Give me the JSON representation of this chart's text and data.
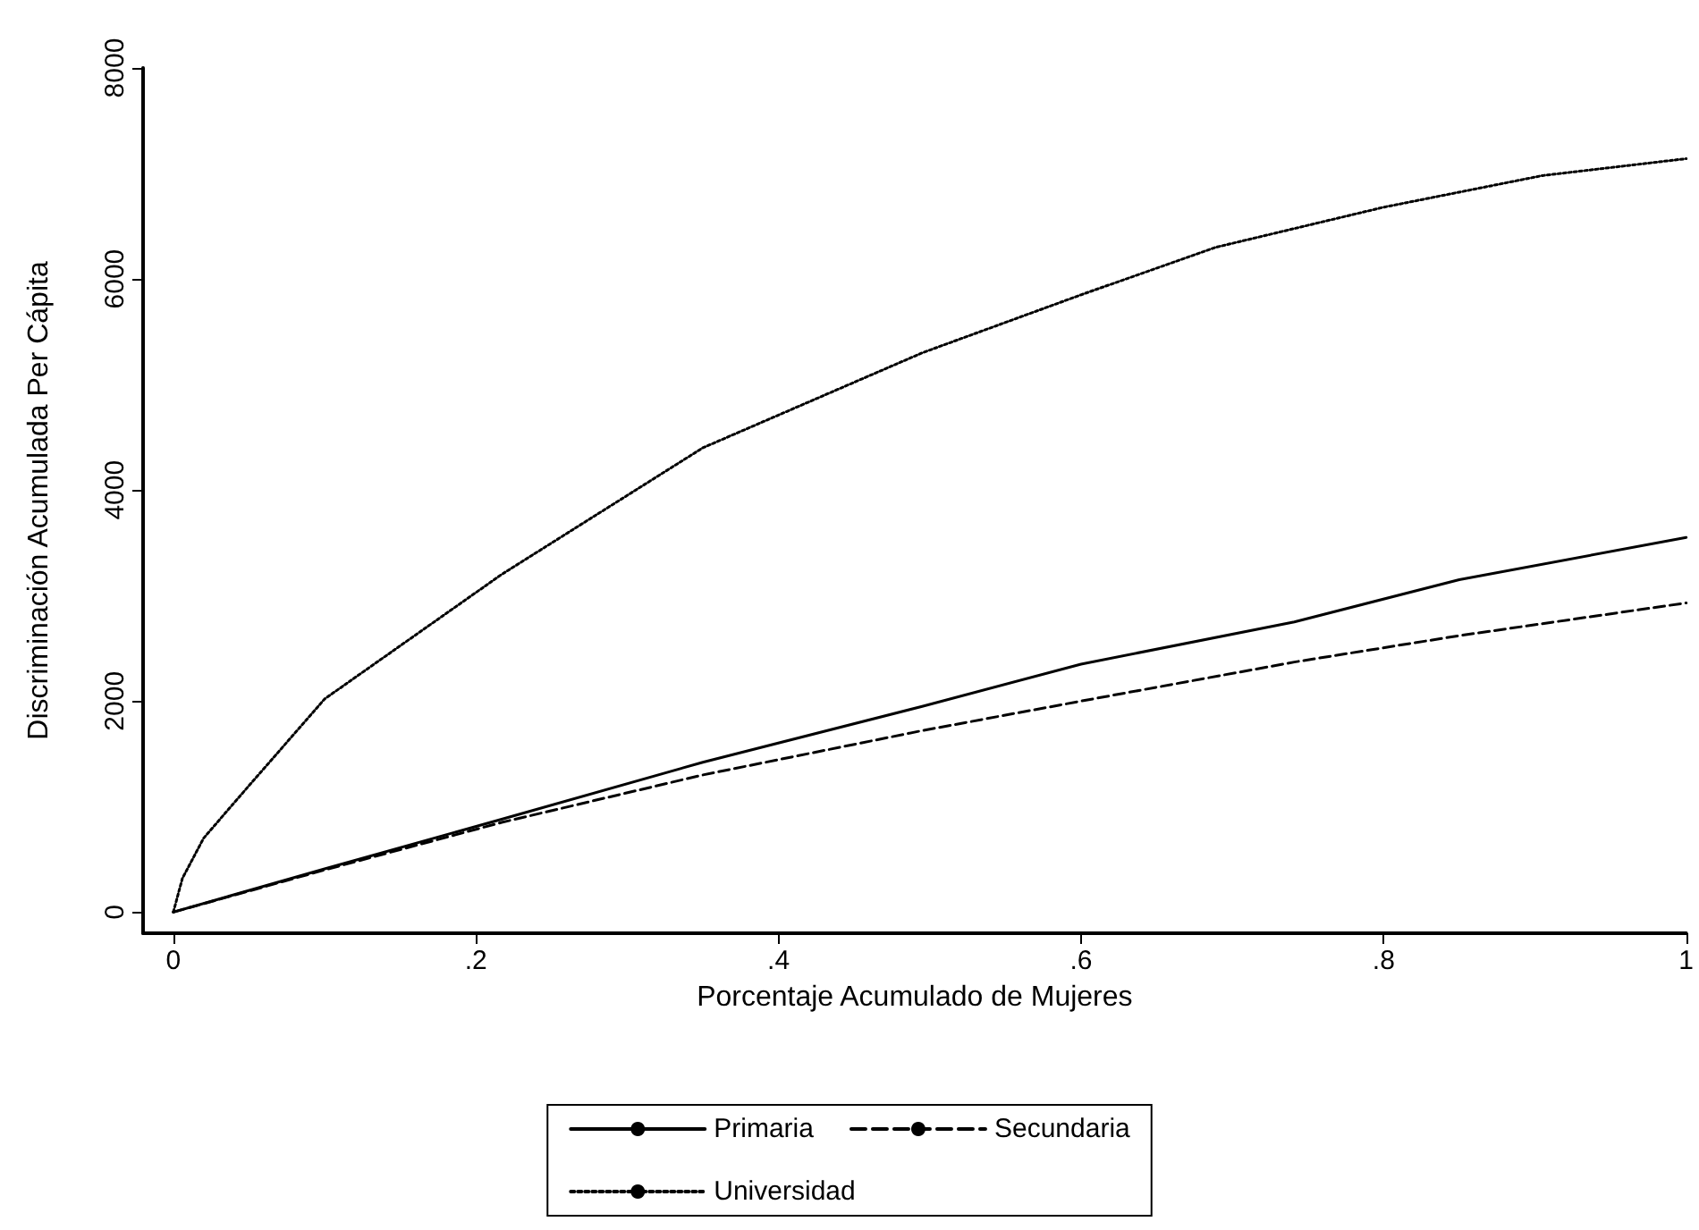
{
  "chart_data": {
    "type": "line",
    "xlabel": "Porcentaje Acumulado de Mujeres",
    "ylabel": "Discriminación Acumulada Per Cápita",
    "xlim": [
      -0.02,
      1
    ],
    "ylim": [
      -200,
      8000
    ],
    "xticks": [
      {
        "value": 0,
        "label": "0"
      },
      {
        "value": 0.2,
        "label": ".2"
      },
      {
        "value": 0.4,
        "label": ".4"
      },
      {
        "value": 0.6,
        "label": ".6"
      },
      {
        "value": 0.8,
        "label": ".8"
      },
      {
        "value": 1,
        "label": "1"
      }
    ],
    "yticks": [
      0,
      2000,
      4000,
      6000,
      8000
    ],
    "grid": false,
    "legend": "bottom",
    "marker": "none",
    "series": [
      {
        "name": "Primaria",
        "color": "#000000",
        "line_style": "solid",
        "x": [
          0,
          0.1,
          0.217,
          0.35,
          0.495,
          0.6,
          0.741,
          0.85,
          1
        ],
        "values": [
          0,
          410,
          880,
          1420,
          1950,
          2350,
          2750,
          3150,
          3550
        ]
      },
      {
        "name": "Secundaria",
        "color": "#000000",
        "line_style": "dashed",
        "x": [
          0,
          0.1,
          0.217,
          0.35,
          0.495,
          0.6,
          0.741,
          0.85,
          1
        ],
        "values": [
          0,
          400,
          850,
          1300,
          1720,
          2000,
          2370,
          2620,
          2930
        ]
      },
      {
        "name": "Universidad",
        "color": "#000000",
        "line_style": "dotted",
        "x": [
          0,
          0.006,
          0.02,
          0.041,
          0.1,
          0.217,
          0.35,
          0.495,
          0.6,
          0.689,
          0.8,
          0.905,
          1
        ],
        "values": [
          0,
          320,
          700,
          1050,
          2020,
          3200,
          4400,
          5300,
          5850,
          6300,
          6680,
          6980,
          7140
        ]
      }
    ]
  }
}
